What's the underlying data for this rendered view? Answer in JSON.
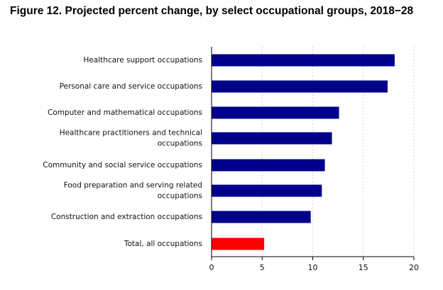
{
  "title": "Figure 12. Projected percent change, by select occupational groups, 2018−28",
  "chart_data": {
    "type": "bar",
    "orientation": "horizontal",
    "categories": [
      "Healthcare support occupations",
      "Personal care and service occupations",
      "Computer and mathematical occupations",
      "Healthcare practitioners and technical occupations",
      "Community and social service occupations",
      "Food preparation and serving related occupations",
      "Construction and extraction occupations",
      "Total, all occupations"
    ],
    "category_labels": [
      [
        "Healthcare support occupations"
      ],
      [
        "Personal care and service occupations"
      ],
      [
        "Computer and mathematical occupations"
      ],
      [
        "Healthcare practitioners and technical",
        "occupations"
      ],
      [
        "Community and social service occupations"
      ],
      [
        "Food preparation and serving related",
        "occupations"
      ],
      [
        "Construction and extraction occupations"
      ],
      [
        "Total, all occupations"
      ]
    ],
    "values": [
      18.1,
      17.4,
      12.6,
      11.9,
      11.2,
      10.9,
      9.8,
      5.2
    ],
    "bar_colors": [
      "#00008b",
      "#00008b",
      "#00008b",
      "#00008b",
      "#00008b",
      "#00008b",
      "#00008b",
      "#ff0000"
    ],
    "xlim": [
      0,
      20
    ],
    "xticks": [
      "0",
      "5",
      "10",
      "15",
      "20"
    ],
    "xtick_values": [
      0,
      5,
      10,
      15,
      20
    ],
    "grid": "vertical dotted",
    "xlabel": "",
    "ylabel": ""
  }
}
